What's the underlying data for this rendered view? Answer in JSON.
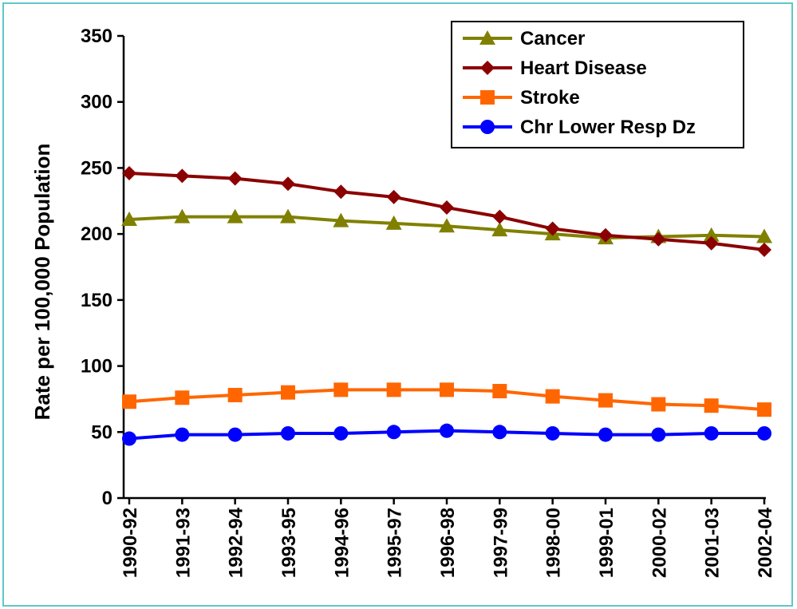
{
  "chart_data": {
    "type": "line",
    "title": "",
    "xlabel": "",
    "ylabel": "Rate per 100,000 Population",
    "ylim": [
      0,
      350
    ],
    "yticks": [
      0,
      50,
      100,
      150,
      200,
      250,
      300,
      350
    ],
    "grid": false,
    "legend_position": "top-right",
    "categories": [
      "1990-92",
      "1991-93",
      "1992-94",
      "1993-95",
      "1994-96",
      "1995-97",
      "1996-98",
      "1997-99",
      "1998-00",
      "1999-01",
      "2000-02",
      "2001-03",
      "2002-04"
    ],
    "series": [
      {
        "name": "Cancer",
        "color": "#808000",
        "marker": "triangle",
        "values": [
          211,
          213,
          213,
          213,
          210,
          208,
          206,
          203,
          200,
          197,
          198,
          199,
          198
        ]
      },
      {
        "name": "Heart Disease",
        "color": "#8b0000",
        "marker": "diamond",
        "values": [
          246,
          244,
          242,
          238,
          232,
          228,
          220,
          213,
          204,
          199,
          196,
          193,
          188
        ]
      },
      {
        "name": "Stroke",
        "color": "#ff6600",
        "marker": "square",
        "values": [
          73,
          76,
          78,
          80,
          82,
          82,
          82,
          81,
          77,
          74,
          71,
          70,
          67
        ]
      },
      {
        "name": "Chr Lower Resp Dz",
        "color": "#0000ff",
        "marker": "circle",
        "values": [
          45,
          48,
          48,
          49,
          49,
          50,
          51,
          50,
          49,
          48,
          48,
          49,
          49
        ]
      }
    ]
  }
}
